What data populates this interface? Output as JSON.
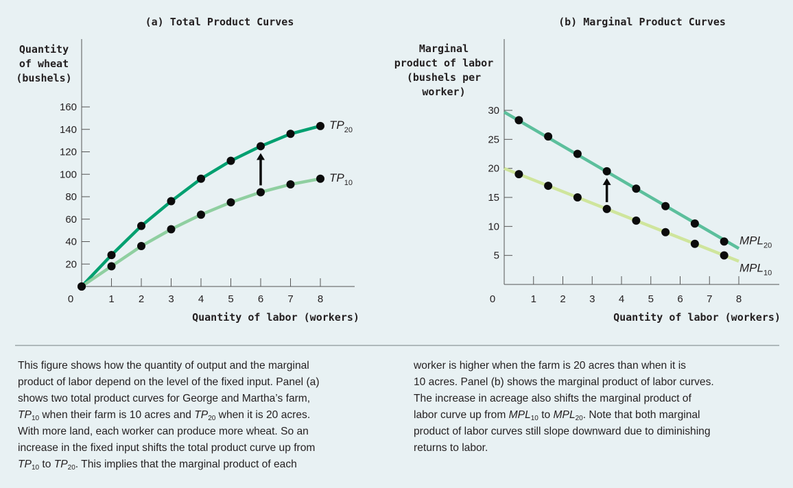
{
  "chart_data": [
    {
      "type": "line",
      "title": "(a) Total Product Curves",
      "ylabel": [
        "Quantity",
        "of wheat",
        "(bushels)"
      ],
      "xlabel": "Quantity of labor (workers)",
      "xlim": [
        0,
        8
      ],
      "ylim": [
        0,
        160
      ],
      "xticks": [
        1,
        2,
        3,
        4,
        5,
        6,
        7,
        8
      ],
      "yticks": [
        20,
        40,
        60,
        80,
        100,
        120,
        140,
        160
      ],
      "origin_label": "0",
      "series": [
        {
          "name": "TP",
          "sub": "20",
          "color": "#00a070",
          "x": [
            0,
            1,
            2,
            3,
            4,
            5,
            6,
            7,
            8
          ],
          "y": [
            0,
            28,
            54,
            76,
            96,
            112,
            125,
            136,
            143
          ]
        },
        {
          "name": "TP",
          "sub": "10",
          "color": "#8fcfa0",
          "x": [
            0,
            1,
            2,
            3,
            4,
            5,
            6,
            7,
            8
          ],
          "y": [
            0,
            18,
            36,
            51,
            64,
            75,
            84,
            91,
            96
          ]
        }
      ],
      "arrow": {
        "x": 6,
        "from": 84,
        "to": 125
      }
    },
    {
      "type": "line",
      "title": "(b) Marginal Product Curves",
      "ylabel": [
        "Marginal",
        "product of labor",
        "(bushels per",
        "worker)"
      ],
      "xlabel": "Quantity of labor (workers)",
      "xlim": [
        0,
        8
      ],
      "ylim": [
        0,
        30
      ],
      "xticks": [
        1,
        2,
        3,
        4,
        5,
        6,
        7,
        8
      ],
      "yticks": [
        5,
        10,
        15,
        20,
        25,
        30
      ],
      "origin_label": "0",
      "series": [
        {
          "name": "MPL",
          "sub": "20",
          "color": "#5cbf9c",
          "x": [
            0.5,
            1.5,
            2.5,
            3.5,
            4.5,
            5.5,
            6.5,
            7.5
          ],
          "y": [
            28.3,
            25.5,
            22.5,
            19.5,
            16.5,
            13.5,
            10.5,
            7.4
          ],
          "line": [
            [
              0,
              29.7
            ],
            [
              8,
              6.2
            ]
          ]
        },
        {
          "name": "MPL",
          "sub": "10",
          "color": "#cfe59c",
          "x": [
            0.5,
            1.5,
            2.5,
            3.5,
            4.5,
            5.5,
            6.5,
            7.5
          ],
          "y": [
            19,
            17,
            15,
            13,
            11,
            9,
            7,
            5
          ],
          "line": [
            [
              0,
              20
            ],
            [
              8,
              4
            ]
          ]
        }
      ],
      "arrow": {
        "x": 3.5,
        "from": 13,
        "to": 19.5
      }
    }
  ],
  "caption": {
    "left": [
      "This figure shows how the quantity of output and the marginal",
      "product of labor depend on the level of the fixed input. Panel (a)",
      "shows two total product curves for George and Martha’s farm,",
      "<i>TP</i><sub>10</sub> when their farm is 10 acres and <i>TP</i><sub>20</sub> when it is 20 acres.",
      "With more land, each worker can produce more wheat. So an",
      "increase in the fixed input shifts the total product curve up from",
      "<i>TP</i><sub>10</sub> to <i>TP</i><sub>20</sub>. This implies that the marginal product of each"
    ],
    "right": [
      "worker is higher when the farm is 20 acres than when it is",
      "10 acres. Panel (b) shows the marginal product of labor curves.",
      "The increase in acreage also shifts the marginal product of",
      "labor curve up from <i>MPL</i><sub>10</sub> to <i>MPL</i><sub>20</sub>. Note that both marginal",
      "product of labor curves still slope downward due to diminishing",
      "returns to labor."
    ]
  }
}
